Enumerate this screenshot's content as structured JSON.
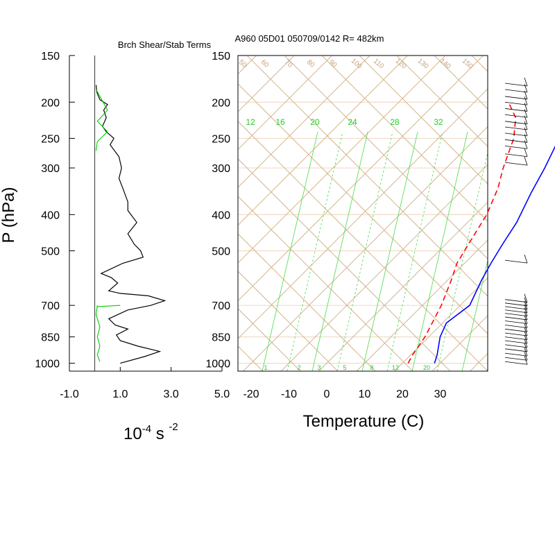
{
  "figure": {
    "title": "A960 05D01 050709/0142 R= 482km",
    "colors": {
      "background": "#ffffff",
      "frame": "#000000",
      "isobar": "#f0dcc8",
      "skewt_lines": "#d2b48c",
      "mixing_ratio": "#44dd44",
      "temperature": "#0000ff",
      "dewpoint": "#ff0000",
      "stability": "#000000",
      "shear": "#00cc00",
      "wind_barbs": "#000000"
    }
  },
  "chart_data": [
    {
      "type": "line",
      "title": "Brch Shear/Stab Terms",
      "xlabel_base": "10",
      "xlabel_exp1": "-4",
      "xlabel_unit": " s ",
      "xlabel_exp2": "-2",
      "ylabel": "P (hPa)",
      "xlim": [
        -1.0,
        5.0
      ],
      "x_ticks": [
        "-1.0",
        "1.0",
        "3.0",
        "5.0"
      ],
      "y_ticks": [
        "150",
        "200",
        "250",
        "300",
        "400",
        "500",
        "700",
        "850",
        "1000"
      ],
      "zero_line": 0.0,
      "series": [
        {
          "color": "#000000",
          "points": [
            [
              0.05,
              180
            ],
            [
              0.08,
              188
            ],
            [
              0.2,
              197
            ],
            [
              0.5,
              203
            ],
            [
              0.35,
              210
            ],
            [
              0.45,
              220
            ],
            [
              0.3,
              232
            ],
            [
              0.45,
              240
            ],
            [
              0.75,
              250
            ],
            [
              0.6,
              260
            ],
            [
              0.95,
              280
            ],
            [
              1.05,
              300
            ],
            [
              0.95,
              320
            ],
            [
              1.1,
              340
            ],
            [
              1.3,
              370
            ],
            [
              1.3,
              390
            ],
            [
              1.65,
              420
            ],
            [
              1.3,
              450
            ],
            [
              1.55,
              480
            ],
            [
              1.8,
              500
            ],
            [
              1.9,
              520
            ],
            [
              1.1,
              540
            ],
            [
              0.25,
              575
            ],
            [
              0.65,
              590
            ],
            [
              0.9,
              610
            ],
            [
              0.55,
              640
            ],
            [
              1.0,
              650
            ],
            [
              2.1,
              660
            ],
            [
              2.75,
              680
            ],
            [
              2.2,
              700
            ],
            [
              1.3,
              720
            ],
            [
              0.55,
              760
            ],
            [
              0.8,
              790
            ],
            [
              1.3,
              810
            ],
            [
              0.85,
              840
            ],
            [
              1.0,
              870
            ],
            [
              1.7,
              900
            ],
            [
              2.55,
              930
            ],
            [
              1.95,
              960
            ],
            [
              1.0,
              1000
            ]
          ]
        },
        {
          "color": "#00cc00",
          "points": [
            [
              0.05,
              185
            ],
            [
              0.5,
              210
            ],
            [
              0.1,
              225
            ],
            [
              0.5,
              240
            ],
            [
              0.1,
              255
            ],
            [
              0.05,
              270
            ]
          ],
          "points2": [
            [
              0.1,
              700
            ],
            [
              0.05,
              740
            ],
            [
              0.2,
              800
            ],
            [
              0.1,
              850
            ],
            [
              0.2,
              900
            ],
            [
              0.1,
              950
            ],
            [
              0.2,
              990
            ]
          ],
          "points3": [
            [
              0.1,
              705
            ],
            [
              1.0,
              700
            ]
          ]
        }
      ]
    },
    {
      "type": "line",
      "subtype": "skew-t",
      "xlabel": "Temperature (C)",
      "x_ticks": [
        "-20",
        "-10",
        "0",
        "10",
        "20",
        "30"
      ],
      "y_ticks": [
        "150",
        "200",
        "250",
        "300",
        "400",
        "500",
        "700",
        "850",
        "1000"
      ],
      "ylim": [
        1050,
        150
      ],
      "mixing_ratio_labels": [
        "12",
        "16",
        "20",
        "24",
        "28",
        "32"
      ],
      "mixing_ratio_bottom_labels": [
        "1",
        "2",
        "3",
        "5",
        "8",
        "12",
        "20"
      ],
      "adiabat_labels": [
        "50",
        "60",
        "70",
        "80",
        "90",
        "100",
        "110",
        "120",
        "130",
        "140",
        "150"
      ],
      "series": [
        {
          "name": "",
          "color": "#0000ff",
          "style": "solid",
          "points": [
            [
              28.5,
              1000
            ],
            [
              27,
              950
            ],
            [
              23,
              850
            ],
            [
              21,
              780
            ],
            [
              22.5,
              700
            ],
            [
              19,
              600
            ],
            [
              17,
              540
            ],
            [
              15,
              480
            ],
            [
              13,
              420
            ],
            [
              9,
              350
            ],
            [
              6,
              300
            ],
            [
              2,
              250
            ],
            [
              -3,
              200
            ],
            [
              -10,
              170
            ]
          ]
        },
        {
          "name": "",
          "color": "#ff0000",
          "style": "dashed",
          "points": [
            [
              21.5,
              1000
            ],
            [
              20.5,
              950
            ],
            [
              19,
              850
            ],
            [
              17.5,
              790
            ],
            [
              15,
              700
            ],
            [
              11,
              600
            ],
            [
              8,
              540
            ],
            [
              6,
              480
            ],
            [
              3,
              400
            ],
            [
              -1,
              340
            ],
            [
              -5,
              300
            ],
            [
              -10,
              250
            ],
            [
              -15,
              220
            ],
            [
              -21,
              200
            ]
          ]
        }
      ],
      "wind_barbs": [
        {
          "p": 178
        },
        {
          "p": 185
        },
        {
          "p": 193
        },
        {
          "p": 200
        },
        {
          "p": 208
        },
        {
          "p": 216
        },
        {
          "p": 225
        },
        {
          "p": 233
        },
        {
          "p": 242
        },
        {
          "p": 252
        },
        {
          "p": 262
        },
        {
          "p": 275
        },
        {
          "p": 290
        },
        {
          "p": 530
        },
        {
          "p": 675
        },
        {
          "p": 690
        },
        {
          "p": 705
        },
        {
          "p": 720
        },
        {
          "p": 735
        },
        {
          "p": 752
        },
        {
          "p": 770
        },
        {
          "p": 790
        },
        {
          "p": 810
        },
        {
          "p": 830
        },
        {
          "p": 850
        },
        {
          "p": 870
        },
        {
          "p": 892
        },
        {
          "p": 915
        },
        {
          "p": 940
        },
        {
          "p": 965
        },
        {
          "p": 990
        }
      ]
    }
  ]
}
